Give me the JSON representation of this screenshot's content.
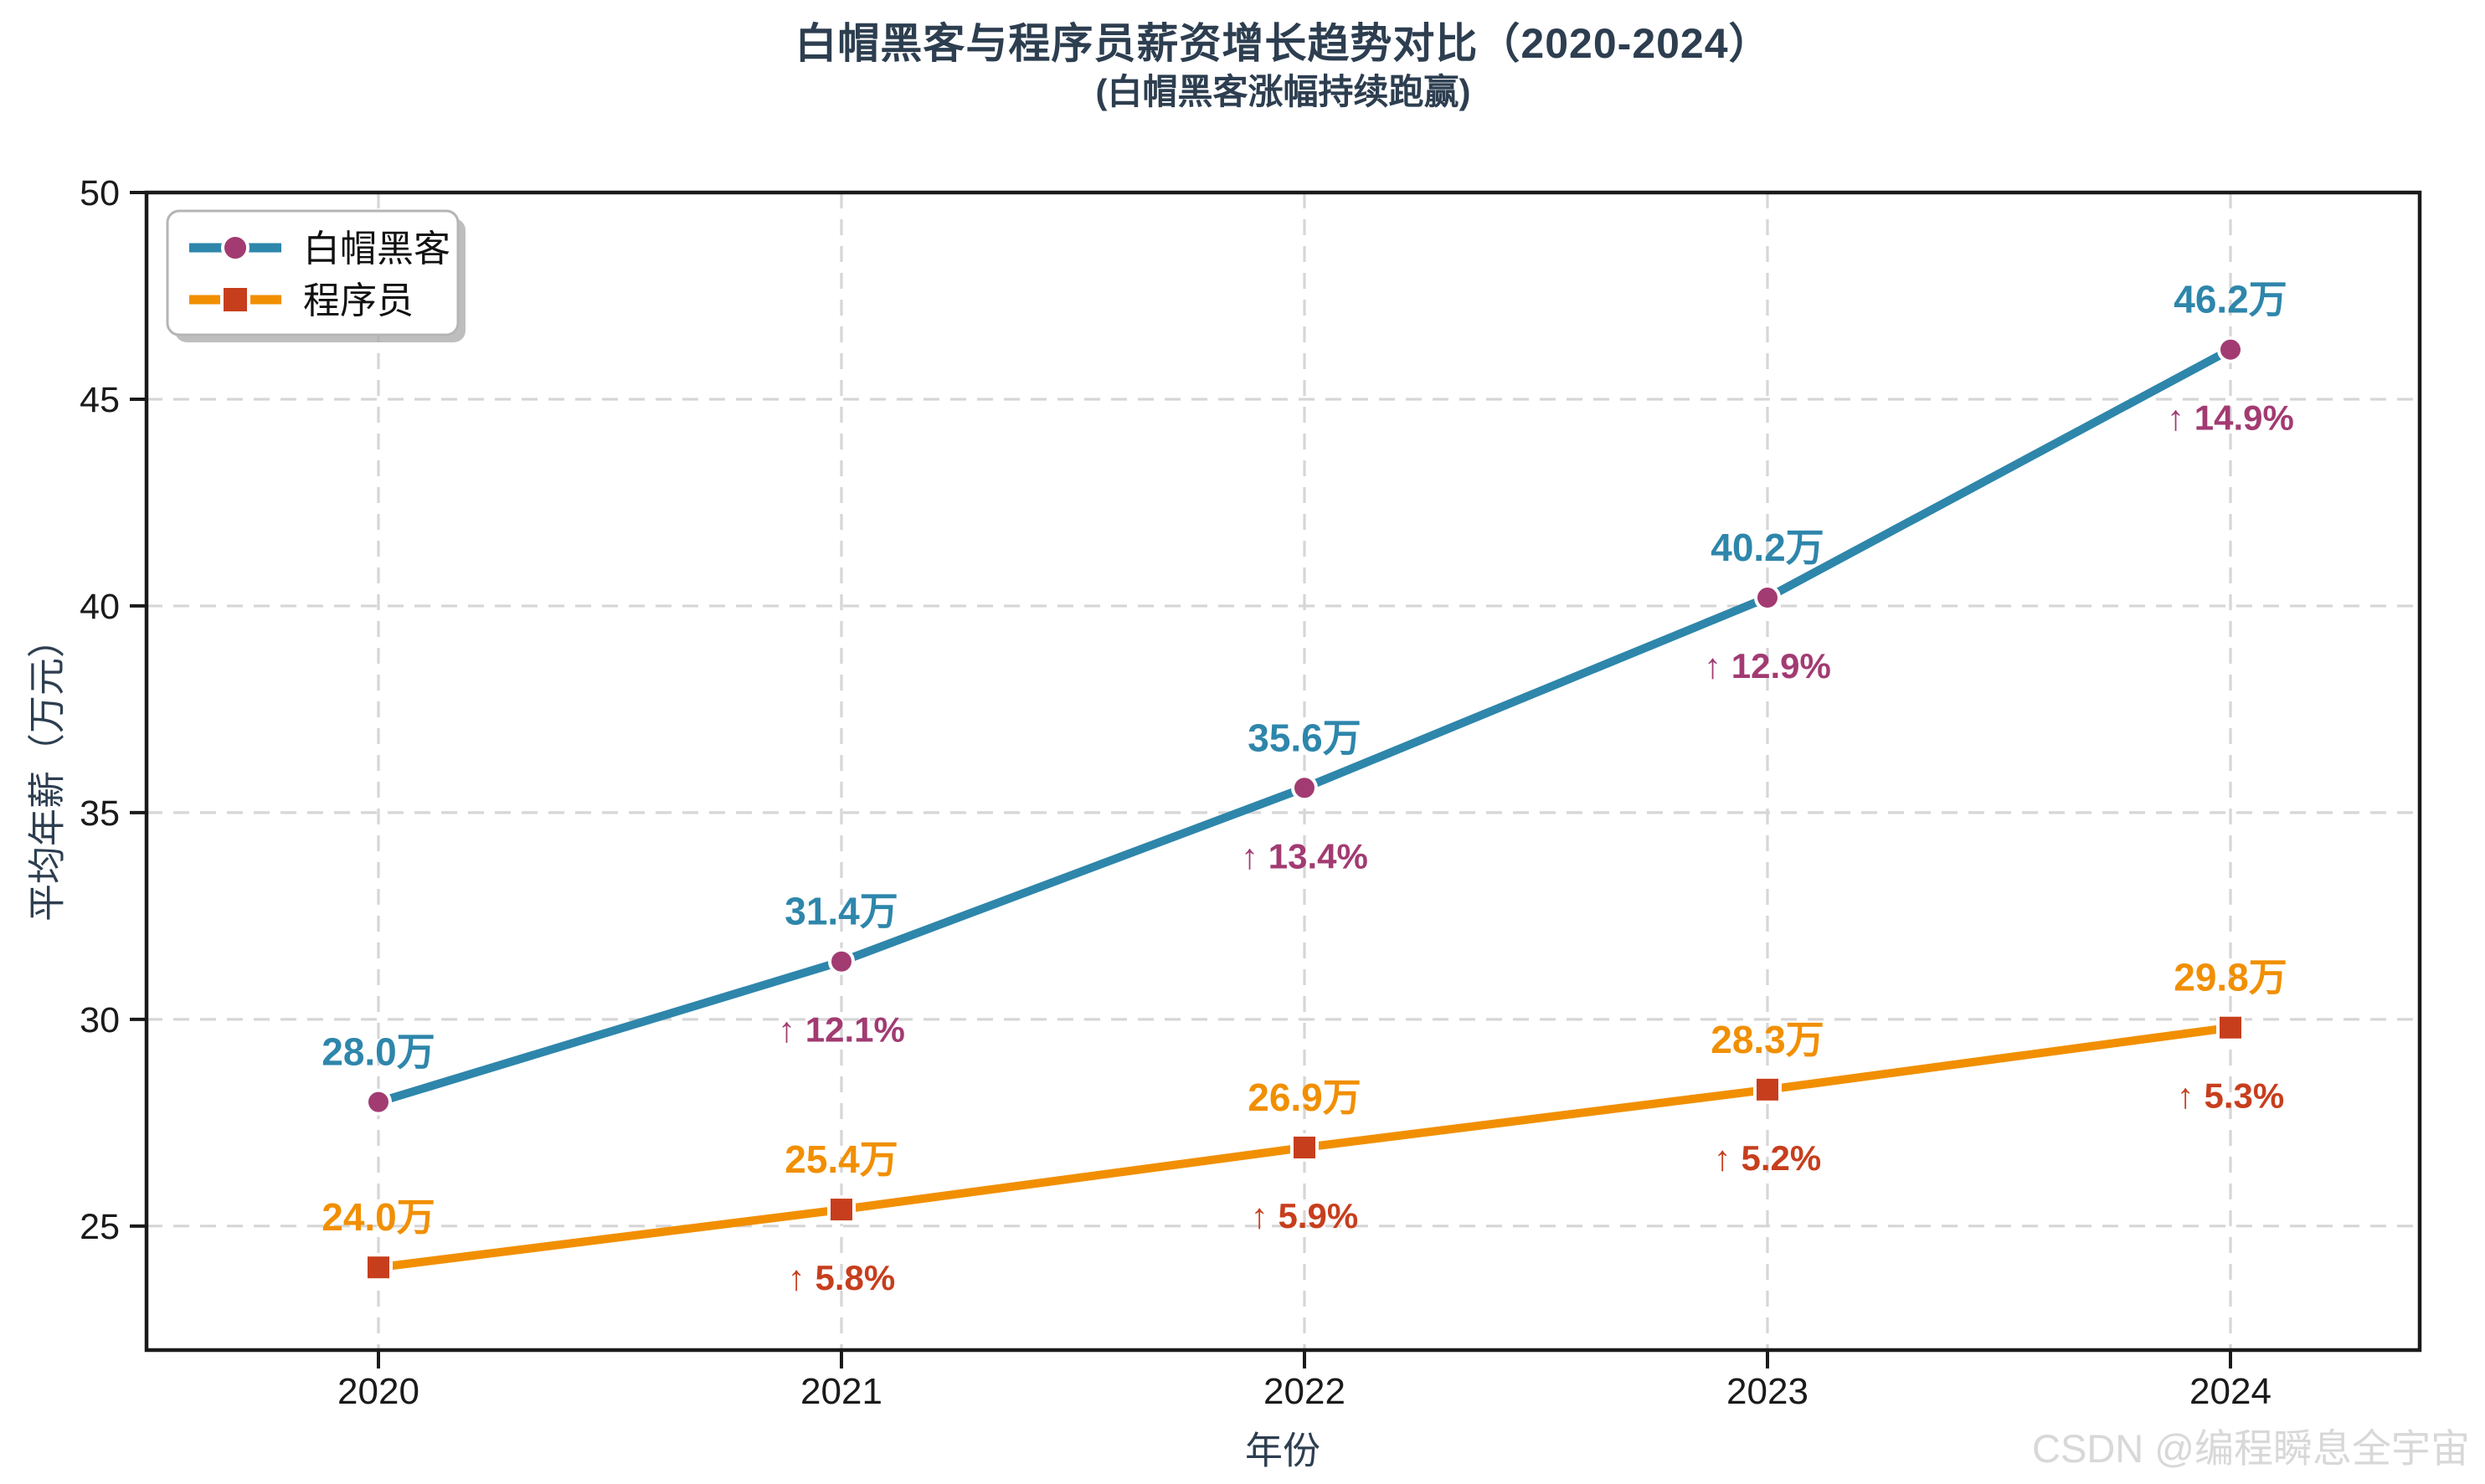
{
  "chart_data": {
    "type": "line",
    "title": "白帽黑客与程序员薪资增长趋势对比（2020-2024）",
    "subtitle": "(白帽黑客涨幅持续跑赢)",
    "xlabel": "年份",
    "ylabel": "平均年薪（万元）",
    "x": [
      2020,
      2021,
      2022,
      2023,
      2024
    ],
    "xtick_labels": [
      "2020",
      "2021",
      "2022",
      "2023",
      "2024"
    ],
    "yticks": [
      25,
      30,
      35,
      40,
      45,
      50
    ],
    "ylim": [
      22,
      50
    ],
    "grid": true,
    "legend_position": "upper left",
    "series": [
      {
        "key": "white-hat-hacker",
        "name": "白帽黑客",
        "line_color": "#2E86AB",
        "marker": "circle",
        "marker_color": "#A23B72",
        "values": [
          28.0,
          31.4,
          35.6,
          40.2,
          46.2
        ],
        "point_labels": [
          "28.0万",
          "31.4万",
          "35.6万",
          "40.2万",
          "46.2万"
        ],
        "growth_labels": [
          "",
          "↑ 12.1%",
          "↑ 13.4%",
          "↑ 12.9%",
          "↑ 14.9%"
        ],
        "growth_color": "#A23B72"
      },
      {
        "key": "programmer",
        "name": "程序员",
        "line_color": "#F18F01",
        "marker": "square",
        "marker_color": "#C73E1D",
        "values": [
          24.0,
          25.4,
          26.9,
          28.3,
          29.8
        ],
        "point_labels": [
          "24.0万",
          "25.4万",
          "26.9万",
          "28.3万",
          "29.8万"
        ],
        "growth_labels": [
          "",
          "↑ 5.8%",
          "↑ 5.9%",
          "↑ 5.2%",
          "↑ 5.3%"
        ],
        "growth_color": "#C73E1D"
      }
    ],
    "colors": {
      "text": "#2d3e50",
      "tick_text": "#1a1a1a",
      "grid": "#d6d6d6",
      "spine": "#1a1a1a",
      "legend_border": "#b5b5b5",
      "legend_shadow": "#a8a8a8",
      "background": "#ffffff"
    }
  },
  "watermark": {
    "text": "CSDN @编程瞬息全宇宙"
  }
}
